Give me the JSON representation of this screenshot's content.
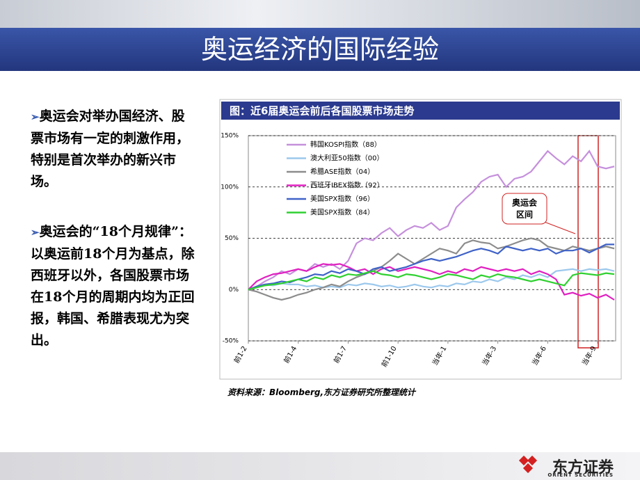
{
  "slide": {
    "title": "奥运经济的国际经验",
    "bullets": [
      "奥运会对举办国经济、股票市场有一定的刺激作用，特别是首次举办的新兴市场。",
      "奥运会的“18个月规律”：以奥运前18个月为基点，除西班牙以外，各国股票市场在18个月的周期内均为正回报，韩国、希腊表现尤为突出。"
    ],
    "source": "资料来源：Bloomberg,东方证券研究所整理统计",
    "logo": "东方证券",
    "logo_en": "ORIENT SECURITIES"
  },
  "chart_data": {
    "type": "line",
    "title": "图：近6届奥运会前后各国股票市场走势",
    "categories": [
      "前1-2",
      null,
      null,
      null,
      null,
      null,
      "前1-4",
      null,
      null,
      null,
      null,
      null,
      "前1-7",
      null,
      null,
      null,
      null,
      null,
      "前1-10",
      null,
      null,
      null,
      null,
      null,
      "当年-1",
      null,
      null,
      null,
      null,
      null,
      "当年-3",
      null,
      null,
      null,
      null,
      null,
      "当年-6",
      null,
      null,
      null,
      null,
      null,
      "当年-9",
      null,
      null
    ],
    "ylim": [
      -50,
      150
    ],
    "yticks": [
      {
        "value": -50,
        "label": "-50%"
      },
      {
        "value": 0,
        "label": "0%"
      },
      {
        "value": 50,
        "label": "50%"
      },
      {
        "value": 100,
        "label": "100%"
      },
      {
        "value": 150,
        "label": "150%"
      }
    ],
    "grid": true,
    "annotation": [
      "奥运会",
      "区间"
    ],
    "series": [
      {
        "name": "韩国KOSPI指数（88）",
        "color": "#c590dc",
        "values": [
          0,
          3,
          8,
          12,
          18,
          15,
          20,
          18,
          25,
          22,
          25,
          20,
          28,
          45,
          50,
          48,
          55,
          60,
          52,
          58,
          62,
          60,
          65,
          58,
          62,
          80,
          88,
          95,
          105,
          110,
          112,
          100,
          108,
          110,
          115,
          125,
          135,
          128,
          122,
          130,
          125,
          135,
          120,
          118,
          120
        ]
      },
      {
        "name": "澳大利亚50指数（00）",
        "color": "#9cc8ec",
        "values": [
          0,
          2,
          5,
          4,
          6,
          5,
          5,
          3,
          4,
          2,
          3,
          2,
          5,
          4,
          6,
          5,
          3,
          4,
          2,
          3,
          5,
          3,
          2,
          4,
          3,
          6,
          5,
          8,
          7,
          10,
          8,
          12,
          10,
          14,
          12,
          15,
          12,
          18,
          19,
          20,
          18,
          20,
          19,
          20,
          18
        ]
      },
      {
        "name": "希腊ASE指数（04）",
        "color": "#8c8c8c",
        "values": [
          0,
          -2,
          -5,
          -8,
          -10,
          -8,
          -5,
          -3,
          0,
          2,
          5,
          3,
          8,
          12,
          15,
          18,
          22,
          28,
          35,
          30,
          25,
          30,
          35,
          40,
          38,
          35,
          45,
          48,
          46,
          45,
          40,
          42,
          45,
          48,
          50,
          48,
          42,
          40,
          38,
          42,
          40,
          38,
          40,
          42,
          40
        ]
      },
      {
        "name": "西班牙IBEX指数（92）",
        "color": "#e020c0",
        "values": [
          0,
          8,
          12,
          15,
          16,
          18,
          20,
          18,
          22,
          25,
          24,
          25,
          22,
          18,
          20,
          15,
          20,
          22,
          18,
          20,
          22,
          20,
          18,
          15,
          18,
          16,
          20,
          18,
          22,
          20,
          18,
          20,
          18,
          20,
          15,
          18,
          15,
          10,
          -5,
          -3,
          -6,
          -4,
          -8,
          -5,
          -10
        ]
      },
      {
        "name": "美国SPX指数（96）",
        "color": "#3f62c8",
        "values": [
          0,
          3,
          5,
          6,
          8,
          7,
          10,
          12,
          15,
          14,
          18,
          16,
          20,
          18,
          15,
          20,
          22,
          18,
          20,
          22,
          25,
          28,
          30,
          28,
          30,
          32,
          35,
          38,
          40,
          38,
          35,
          42,
          40,
          38,
          40,
          38,
          40,
          35,
          38,
          38,
          40,
          36,
          40,
          44,
          44
        ]
      },
      {
        "name": "美国SPX指数（84）",
        "color": "#2fd030",
        "values": [
          0,
          2,
          4,
          5,
          6,
          8,
          10,
          8,
          12,
          10,
          14,
          12,
          15,
          14,
          16,
          18,
          15,
          14,
          12,
          15,
          14,
          12,
          10,
          12,
          15,
          14,
          12,
          10,
          14,
          12,
          15,
          13,
          12,
          10,
          8,
          10,
          8,
          6,
          4,
          14,
          16,
          15,
          14,
          16,
          15
        ]
      }
    ]
  }
}
